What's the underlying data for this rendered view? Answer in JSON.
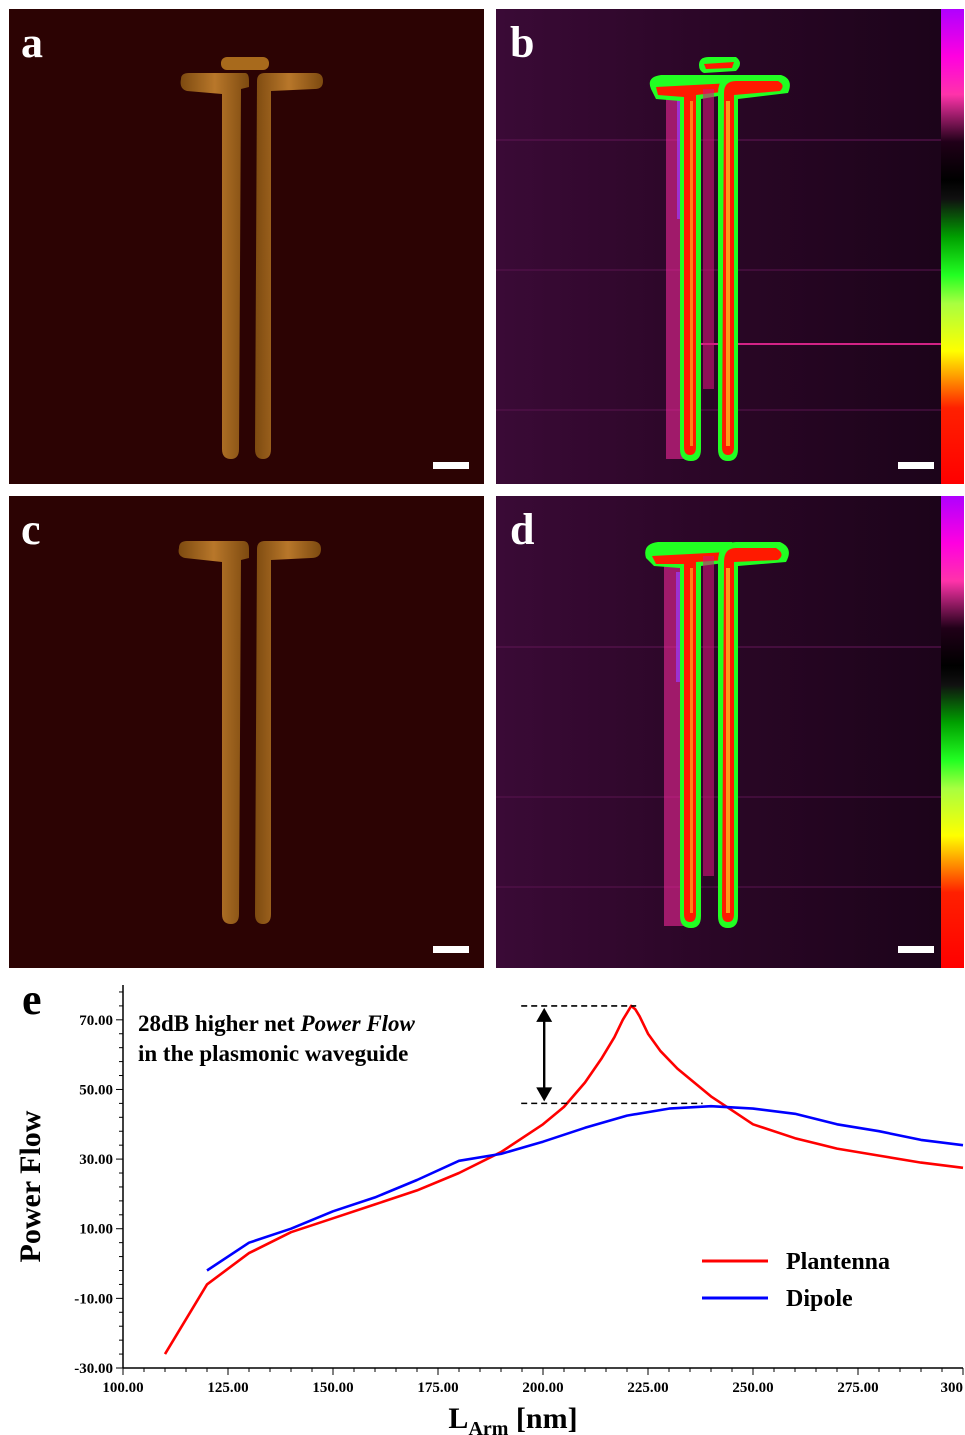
{
  "panels": {
    "a": {
      "label": "a"
    },
    "b": {
      "label": "b"
    },
    "c": {
      "label": "c"
    },
    "d": {
      "label": "d"
    },
    "e": {
      "label": "e"
    }
  },
  "colors": {
    "plantenna": "#ff0000",
    "dipole": "#0000ff",
    "afm_background": "#2c0303",
    "afm_structure": "#a86a1c"
  },
  "chart_data": {
    "type": "line",
    "title": "",
    "xlabel": "L",
    "xlabel_subscript": "Arm",
    "xlabel_unit": "[nm]",
    "ylabel": "Power Flow",
    "xlim": [
      100,
      300
    ],
    "ylim": [
      -30,
      80
    ],
    "x_ticks": [
      "100.00",
      "125.00",
      "150.00",
      "175.00",
      "200.00",
      "225.00",
      "250.00",
      "275.00",
      "300"
    ],
    "x_tick_values": [
      100,
      125,
      150,
      175,
      200,
      225,
      250,
      275,
      300
    ],
    "y_ticks": [
      "-30.00",
      "-10.00",
      "10.00",
      "30.00",
      "50.00",
      "70.00"
    ],
    "y_tick_values": [
      -30,
      -10,
      10,
      30,
      50,
      70
    ],
    "grid": false,
    "legend_position": "bottom-right",
    "annotation": {
      "line1": "28dB higher net ",
      "line1_italic": "Power Flow",
      "line2": "in the plasmonic waveguide",
      "arrow_from": 46,
      "arrow_to": 74
    },
    "series": [
      {
        "name": "Plantenna",
        "color": "#ff0000",
        "x": [
          110,
          120,
          130,
          140,
          150,
          160,
          170,
          180,
          190,
          200,
          205,
          210,
          214,
          217,
          219,
          220,
          221,
          222,
          223,
          225,
          228,
          232,
          236,
          240,
          245,
          250,
          260,
          270,
          280,
          290,
          300
        ],
        "y": [
          -26,
          -6,
          3,
          9,
          13,
          17,
          21,
          26,
          32,
          40,
          45,
          52,
          59,
          65,
          70,
          72,
          74,
          73,
          71,
          66,
          61,
          56,
          52,
          48,
          44,
          40,
          36,
          33,
          31,
          29,
          27.5
        ]
      },
      {
        "name": "Dipole",
        "color": "#0000ff",
        "x": [
          120,
          130,
          140,
          150,
          160,
          170,
          180,
          190,
          200,
          210,
          220,
          230,
          240,
          250,
          260,
          270,
          280,
          290,
          300
        ],
        "y": [
          -2,
          6,
          10,
          15,
          19,
          24,
          29.5,
          31.5,
          35,
          39,
          42.5,
          44.5,
          45.2,
          44.5,
          43,
          40,
          38,
          35.5,
          34
        ]
      }
    ]
  }
}
